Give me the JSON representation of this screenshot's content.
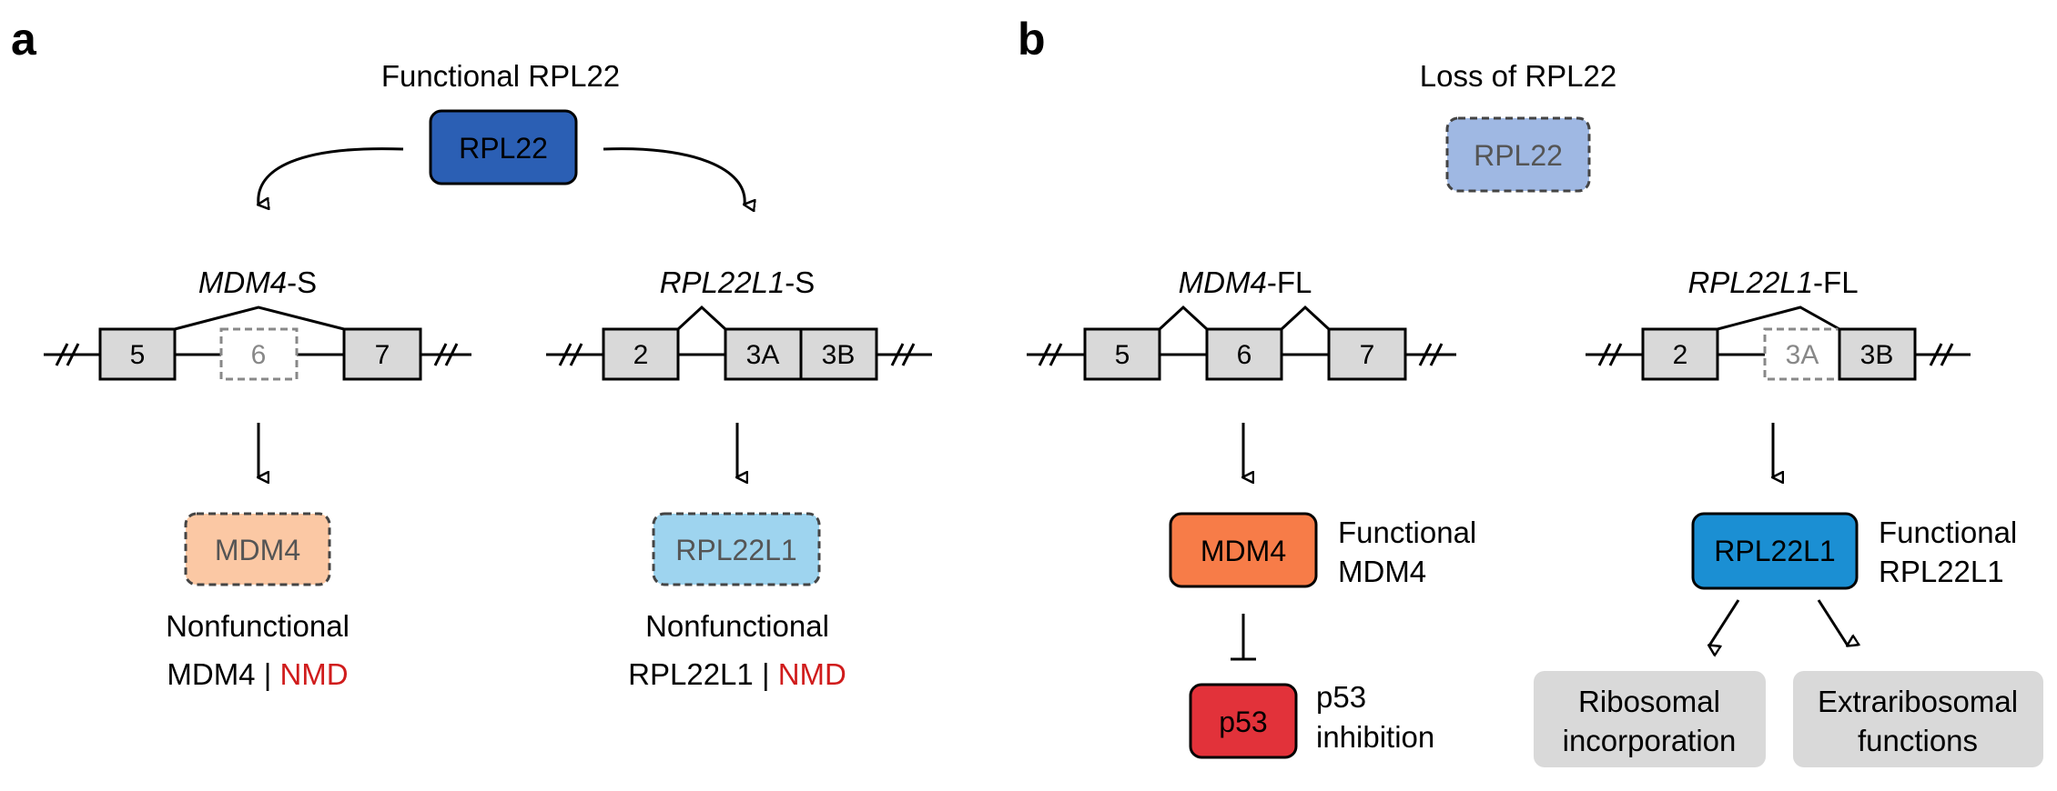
{
  "panels": {
    "a": {
      "label": "a",
      "title": "Functional RPL22",
      "top_node": "RPL22",
      "left": {
        "gene_italic": "MDM4",
        "gene_suffix": "-S",
        "exons": [
          "5",
          "6",
          "7"
        ],
        "skipped_exon": "6",
        "product": "MDM4",
        "caption_line1": "Nonfunctional",
        "caption_line2": "MDM4",
        "separator": "|",
        "nmd": "NMD"
      },
      "right": {
        "gene_italic": "RPL22L1",
        "gene_suffix": "-S",
        "exons": [
          "2",
          "3A",
          "3B"
        ],
        "product": "RPL22L1",
        "caption_line1": "Nonfunctional",
        "caption_line2": "RPL22L1",
        "separator": "|",
        "nmd": "NMD"
      }
    },
    "b": {
      "label": "b",
      "title": "Loss of RPL22",
      "top_node": "RPL22",
      "left": {
        "gene_italic": "MDM4",
        "gene_suffix": "-FL",
        "exons": [
          "5",
          "6",
          "7"
        ],
        "product": "MDM4",
        "product_caption_line1": "Functional",
        "product_caption_line2": "MDM4",
        "target": "p53",
        "target_caption_line1": "p53",
        "target_caption_line2": "inhibition"
      },
      "right": {
        "gene_italic": "RPL22L1",
        "gene_suffix": "-FL",
        "exons": [
          "2",
          "3A",
          "3B"
        ],
        "skipped_exon": "3A",
        "product": "RPL22L1",
        "product_caption_line1": "Functional",
        "product_caption_line2": "RPL22L1",
        "outcome_left_line1": "Ribosomal",
        "outcome_left_line2": "incorporation",
        "outcome_right_line1": "Extraribosomal",
        "outcome_right_line2": "functions"
      }
    }
  },
  "colors": {
    "rpl22_functional": "#2b5fb4",
    "rpl22_lost": "#9fb8e3",
    "mdm4_nonfunctional": "#fbc8a4",
    "rpl22l1_nonfunctional": "#9ed4ef",
    "mdm4_functional": "#f77c48",
    "rpl22l1_functional": "#1b8fd3",
    "p53": "#e2323a",
    "outcome_box": "#d9d9d9",
    "nmd_text": "#d01c1c",
    "exon_fill": "#d9d9d9"
  }
}
